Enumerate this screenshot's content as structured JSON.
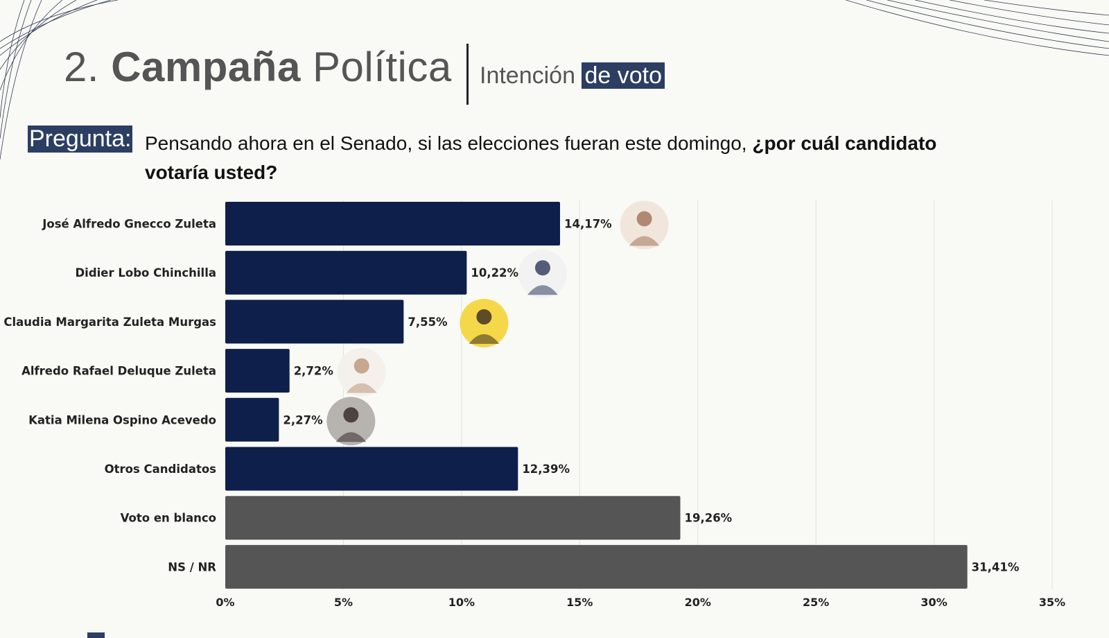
{
  "header": {
    "number": "2.",
    "title_bold": "Campaña",
    "title_light": "Política",
    "subtitle_plain": "Intención",
    "subtitle_highlight": "de voto"
  },
  "question": {
    "label": "Pregunta:",
    "text": "Pensando ahora en el Senado, si las elecciones fueran este domingo, ",
    "text_bold": "¿por cuál candidato votaría usted?"
  },
  "colors": {
    "candidate_bar": "#0d1f4a",
    "other_bar": "#555555",
    "highlight": "#2c3e62"
  },
  "chart_data": {
    "type": "bar",
    "orientation": "horizontal",
    "categories": [
      "José Alfredo Gnecco Zuleta",
      "Didier Lobo Chinchilla",
      "Claudia Margarita Zuleta Murgas",
      "Alfredo Rafael Deluque Zuleta",
      "Katia Milena Ospino Acevedo",
      "Otros Candidatos",
      "Voto en blanco",
      "NS / NR"
    ],
    "values": [
      14.17,
      10.22,
      7.55,
      2.72,
      2.27,
      12.39,
      19.26,
      31.41
    ],
    "data_labels": [
      "14,17%",
      "10,22%",
      "7,55%",
      "2,72%",
      "2,27%",
      "12,39%",
      "19,26%",
      "31,41%"
    ],
    "bar_colors": [
      "#0d1f4a",
      "#0d1f4a",
      "#0d1f4a",
      "#0d1f4a",
      "#0d1f4a",
      "#0d1f4a",
      "#555555",
      "#555555"
    ],
    "candidate_photos": [
      true,
      true,
      true,
      true,
      true,
      false,
      false,
      false
    ],
    "xlim": [
      0,
      35
    ],
    "xticks": [
      0,
      5,
      10,
      15,
      20,
      25,
      30,
      35
    ],
    "xtick_labels": [
      "0%",
      "5%",
      "10%",
      "15%",
      "20%",
      "25%",
      "30%",
      "35%"
    ],
    "grid": true
  }
}
